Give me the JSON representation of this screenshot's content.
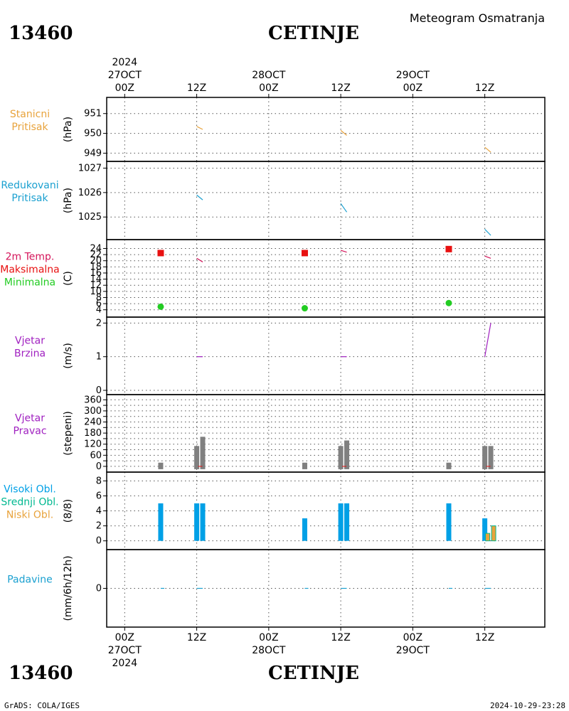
{
  "header": {
    "station_id": "13460",
    "station_name": "CETINJE",
    "title": "Meteogram Osmatranja"
  },
  "footer": {
    "station_id": "13460",
    "station_name": "CETINJE",
    "credit": "GrADS: COLA/IGES",
    "timestamp": "2024-10-29-23:28"
  },
  "colors": {
    "pressure": "#e8a33c",
    "reduced": "#1aa0d0",
    "temp": "#d4145a",
    "max": "#e81010",
    "min": "#22cc22",
    "wind": "#a020c0",
    "bar_gray": "#808080",
    "high_cloud": "#00a0e6",
    "mid_cloud": "#00b890",
    "low_cloud": "#e8a33c",
    "precip": "#1aa0d0"
  },
  "time_axis": {
    "top_year": "2024",
    "top_labels": [
      {
        "t": 0,
        "l1": "27OCT",
        "l2": "00Z"
      },
      {
        "t": 12,
        "l1": "",
        "l2": "12Z"
      },
      {
        "t": 24,
        "l1": "28OCT",
        "l2": "00Z"
      },
      {
        "t": 36,
        "l1": "",
        "l2": "12Z"
      },
      {
        "t": 48,
        "l1": "29OCT",
        "l2": "00Z"
      },
      {
        "t": 60,
        "l1": "",
        "l2": "12Z"
      }
    ],
    "bottom_labels": [
      {
        "t": 0,
        "l1": "00Z",
        "l2": "27OCT",
        "l3": "2024"
      },
      {
        "t": 12,
        "l1": "12Z",
        "l2": "",
        "l3": ""
      },
      {
        "t": 24,
        "l1": "00Z",
        "l2": "28OCT",
        "l3": ""
      },
      {
        "t": 36,
        "l1": "12Z",
        "l2": "",
        "l3": ""
      },
      {
        "t": 48,
        "l1": "00Z",
        "l2": "29OCT",
        "l3": ""
      },
      {
        "t": 60,
        "l1": "12Z",
        "l2": "",
        "l3": ""
      }
    ],
    "tmin": -3,
    "tmax": 70
  },
  "chart_data": [
    {
      "type": "line",
      "panel": "pressure",
      "labels": [
        {
          "text": "Stanicni",
          "color": "#e8a33c"
        },
        {
          "text": "Pritisak",
          "color": "#e8a33c"
        }
      ],
      "ylabel": "(hPa)",
      "ylim": [
        948.8,
        951.6
      ],
      "yticks": [
        949,
        950,
        951
      ],
      "series": [
        {
          "segments": [
            [
              [
                12,
                950.35
              ],
              [
                13,
                950.2
              ]
            ],
            [
              [
                36,
                950.15
              ],
              [
                37,
                949.9
              ]
            ],
            [
              [
                60,
                949.3
              ],
              [
                61,
                949.05
              ]
            ]
          ]
        }
      ]
    },
    {
      "type": "line",
      "panel": "reduced",
      "labels": [
        {
          "text": "Redukovani",
          "color": "#1aa0d0"
        },
        {
          "text": "Pritisak",
          "color": "#1aa0d0"
        }
      ],
      "ylabel": "(hPa)",
      "ylim": [
        1024.25,
        1027.1
      ],
      "yticks": [
        1025,
        1026,
        1027
      ],
      "series": [
        {
          "segments": [
            [
              [
                12,
                1025.9
              ],
              [
                13,
                1025.7
              ]
            ],
            [
              [
                36,
                1025.55
              ],
              [
                37,
                1025.2
              ]
            ],
            [
              [
                60,
                1024.5
              ],
              [
                61,
                1024.25
              ]
            ]
          ]
        }
      ]
    },
    {
      "type": "line",
      "panel": "temp",
      "labels": [
        {
          "text": "2m Temp.",
          "color": "#d4145a"
        },
        {
          "text": "Maksimalna",
          "color": "#e81010"
        },
        {
          "text": "Minimalna",
          "color": "#22cc22"
        }
      ],
      "ylabel": "(C)",
      "ylim": [
        3,
        25.5
      ],
      "yticks": [
        4,
        6,
        8,
        10,
        12,
        14,
        16,
        18,
        20,
        22,
        24
      ],
      "series": [
        {
          "name": "2m Temp.",
          "segments": [
            [
              [
                12,
                20.8
              ],
              [
                13,
                19.6
              ]
            ],
            [
              [
                36,
                23.4
              ],
              [
                37,
                22.8
              ]
            ],
            [
              [
                60,
                21.5
              ],
              [
                61,
                20.8
              ]
            ]
          ]
        },
        {
          "name": "Maksimalna",
          "points": [
            [
              6,
              22.5
            ],
            [
              30,
              22.5
            ],
            [
              54,
              23.8
            ]
          ]
        },
        {
          "name": "Minimalna",
          "points": [
            [
              6,
              5.0
            ],
            [
              30,
              4.5
            ],
            [
              54,
              6.2
            ]
          ]
        }
      ]
    },
    {
      "type": "line",
      "panel": "wind_speed",
      "labels": [
        {
          "text": "Vjetar",
          "color": "#a020c0"
        },
        {
          "text": "Brzina",
          "color": "#a020c0"
        }
      ],
      "ylabel": "(m/s)",
      "ylim": [
        0,
        2.05
      ],
      "yticks": [
        0,
        1,
        2
      ],
      "series": [
        {
          "segments": [
            [
              [
                12,
                1.0
              ],
              [
                13,
                1.0
              ]
            ],
            [
              [
                36,
                1.0
              ],
              [
                37,
                1.0
              ]
            ],
            [
              [
                60,
                1.0
              ],
              [
                61,
                2.0
              ]
            ]
          ]
        }
      ]
    },
    {
      "type": "bar",
      "panel": "wind_dir",
      "labels": [
        {
          "text": "Vjetar",
          "color": "#a020c0"
        },
        {
          "text": "Pravac",
          "color": "#a020c0"
        }
      ],
      "ylabel": "(stepeni)",
      "ylim": [
        -8,
        365
      ],
      "yticks": [
        0,
        60,
        120,
        180,
        240,
        300,
        360
      ],
      "yticks_minor": [
        30,
        90,
        150,
        210,
        270,
        330
      ],
      "bars": [
        {
          "t": 6,
          "v": 20
        },
        {
          "t": 12,
          "v": 110
        },
        {
          "t": 13,
          "v": 160
        },
        {
          "t": 30,
          "v": 20
        },
        {
          "t": 36,
          "v": 110
        },
        {
          "t": 37,
          "v": 140
        },
        {
          "t": 54,
          "v": 20
        },
        {
          "t": 60,
          "v": 110
        },
        {
          "t": 61,
          "v": 110
        }
      ]
    },
    {
      "type": "bar",
      "panel": "clouds",
      "labels": [
        {
          "text": "Visoki Obl.",
          "color": "#00a0e6"
        },
        {
          "text": "Srednji Obl.",
          "color": "#00b890"
        },
        {
          "text": "Niski Obl.",
          "color": "#e8a33c"
        }
      ],
      "ylabel": "(8/8)",
      "ylim": [
        -0.6,
        8.6
      ],
      "yticks": [
        0,
        2,
        4,
        6,
        8
      ],
      "high": [
        {
          "t": 6,
          "v": 5
        },
        {
          "t": 12,
          "v": 5
        },
        {
          "t": 13,
          "v": 5
        },
        {
          "t": 30,
          "v": 3
        },
        {
          "t": 36,
          "v": 5
        },
        {
          "t": 37,
          "v": 5
        },
        {
          "t": 54,
          "v": 5
        },
        {
          "t": 60,
          "v": 3
        }
      ],
      "low": [
        {
          "t": 60,
          "v": 1
        },
        {
          "t": 61,
          "v": 2
        }
      ]
    },
    {
      "type": "line",
      "panel": "precip",
      "labels": [
        {
          "text": "Padavine",
          "color": "#1aa0d0"
        }
      ],
      "ylabel": "(mm/6h/12h)",
      "ylim": [
        -1,
        1
      ],
      "yticks": [
        0
      ],
      "series": [
        {
          "segments": [
            [
              [
                6,
                0
              ],
              [
                6.6,
                0
              ]
            ],
            [
              [
                12,
                0
              ],
              [
                13,
                0
              ]
            ],
            [
              [
                30,
                0
              ],
              [
                30.6,
                0
              ]
            ],
            [
              [
                36,
                0
              ],
              [
                37,
                0
              ]
            ],
            [
              [
                54,
                0
              ],
              [
                54.6,
                0
              ]
            ],
            [
              [
                60,
                0
              ],
              [
                61,
                0
              ]
            ]
          ]
        }
      ]
    }
  ]
}
